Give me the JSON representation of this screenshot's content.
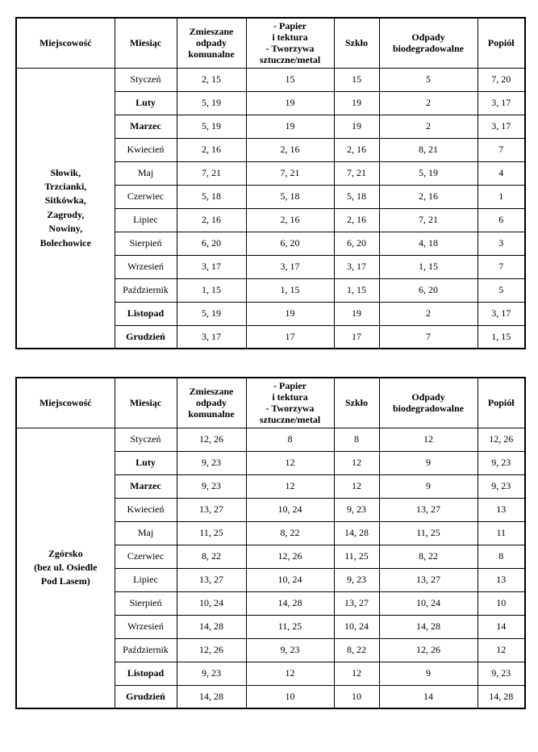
{
  "page": {
    "background_color": "#ffffff",
    "text_color": "#000000",
    "description": "Waste collection schedule document with two tables"
  },
  "columns": [
    {
      "key": "miejscowosc",
      "label": "Miejscowość"
    },
    {
      "key": "miesiac",
      "label": "Miesiąc"
    },
    {
      "key": "zmieszane-odpady-komunalne",
      "label": "Zmieszane\nodpady\nkomunalne"
    },
    {
      "key": "papier-tworzywa",
      "label": "- Papier\ni tektura\n- Tworzywa\nsztuczne/metal"
    },
    {
      "key": "szklo",
      "label": "Szkło"
    },
    {
      "key": "odpady-biodegradowalne",
      "label": "Odpady\nbiodegradowalne"
    },
    {
      "key": "popiol",
      "label": "Popiół"
    }
  ],
  "tables": [
    {
      "locality": "Słowik,\nTrzcianki,\nSitkówka,\nZagrody,\nNowiny,\nBolechowice",
      "rows": [
        {
          "month": "Styczeń",
          "bold": false,
          "values": [
            "2, 15",
            "15",
            "15",
            "5",
            "7, 20"
          ]
        },
        {
          "month": "Luty",
          "bold": true,
          "values": [
            "5, 19",
            "19",
            "19",
            "2",
            "3, 17"
          ]
        },
        {
          "month": "Marzec",
          "bold": true,
          "values": [
            "5, 19",
            "19",
            "19",
            "2",
            "3, 17"
          ]
        },
        {
          "month": "Kwiecień",
          "bold": false,
          "values": [
            "2, 16",
            "2, 16",
            "2, 16",
            "8, 21",
            "7"
          ]
        },
        {
          "month": "Maj",
          "bold": false,
          "values": [
            "7, 21",
            "7, 21",
            "7, 21",
            "5, 19",
            "4"
          ]
        },
        {
          "month": "Czerwiec",
          "bold": false,
          "values": [
            "5, 18",
            "5, 18",
            "5, 18",
            "2, 16",
            "1"
          ]
        },
        {
          "month": "Lipiec",
          "bold": false,
          "values": [
            "2, 16",
            "2, 16",
            "2, 16",
            "7, 21",
            "6"
          ]
        },
        {
          "month": "Sierpień",
          "bold": false,
          "values": [
            "6, 20",
            "6, 20",
            "6, 20",
            "4, 18",
            "3"
          ]
        },
        {
          "month": "Wrzesień",
          "bold": false,
          "values": [
            "3, 17",
            "3, 17",
            "3, 17",
            "1, 15",
            "7"
          ]
        },
        {
          "month": "Październik",
          "bold": false,
          "values": [
            "1, 15",
            "1, 15",
            "1, 15",
            "6, 20",
            "5"
          ]
        },
        {
          "month": "Listopad",
          "bold": true,
          "values": [
            "5, 19",
            "19",
            "19",
            "2",
            "3, 17"
          ]
        },
        {
          "month": "Grudzień",
          "bold": true,
          "values": [
            "3, 17",
            "17",
            "17",
            "7",
            "1, 15"
          ]
        }
      ]
    },
    {
      "locality": "Zgórsko\n(bez ul. Osiedle\nPod Lasem)",
      "rows": [
        {
          "month": "Styczeń",
          "bold": false,
          "values": [
            "12, 26",
            "8",
            "8",
            "12",
            "12, 26"
          ]
        },
        {
          "month": "Luty",
          "bold": true,
          "values": [
            "9, 23",
            "12",
            "12",
            "9",
            "9, 23"
          ]
        },
        {
          "month": "Marzec",
          "bold": true,
          "values": [
            "9, 23",
            "12",
            "12",
            "9",
            "9, 23"
          ]
        },
        {
          "month": "Kwiecień",
          "bold": false,
          "values": [
            "13, 27",
            "10, 24",
            "9, 23",
            "13, 27",
            "13"
          ]
        },
        {
          "month": "Maj",
          "bold": false,
          "values": [
            "11, 25",
            "8, 22",
            "14, 28",
            "11, 25",
            "11"
          ]
        },
        {
          "month": "Czerwiec",
          "bold": false,
          "values": [
            "8, 22",
            "12, 26",
            "11, 25",
            "8, 22",
            "8"
          ]
        },
        {
          "month": "Lipiec",
          "bold": false,
          "values": [
            "13, 27",
            "10, 24",
            "9, 23",
            "13, 27",
            "13"
          ]
        },
        {
          "month": "Sierpień",
          "bold": false,
          "values": [
            "10, 24",
            "14, 28",
            "13, 27",
            "10, 24",
            "10"
          ]
        },
        {
          "month": "Wrzesień",
          "bold": false,
          "values": [
            "14, 28",
            "11, 25",
            "10, 24",
            "14, 28",
            "14"
          ]
        },
        {
          "month": "Październik",
          "bold": false,
          "values": [
            "12, 26",
            "9, 23",
            "8, 22",
            "12, 26",
            "12"
          ]
        },
        {
          "month": "Listopad",
          "bold": true,
          "values": [
            "9, 23",
            "12",
            "12",
            "9",
            "9, 23"
          ]
        },
        {
          "month": "Grudzień",
          "bold": true,
          "values": [
            "14, 28",
            "10",
            "10",
            "14",
            "14, 28"
          ]
        }
      ]
    }
  ]
}
